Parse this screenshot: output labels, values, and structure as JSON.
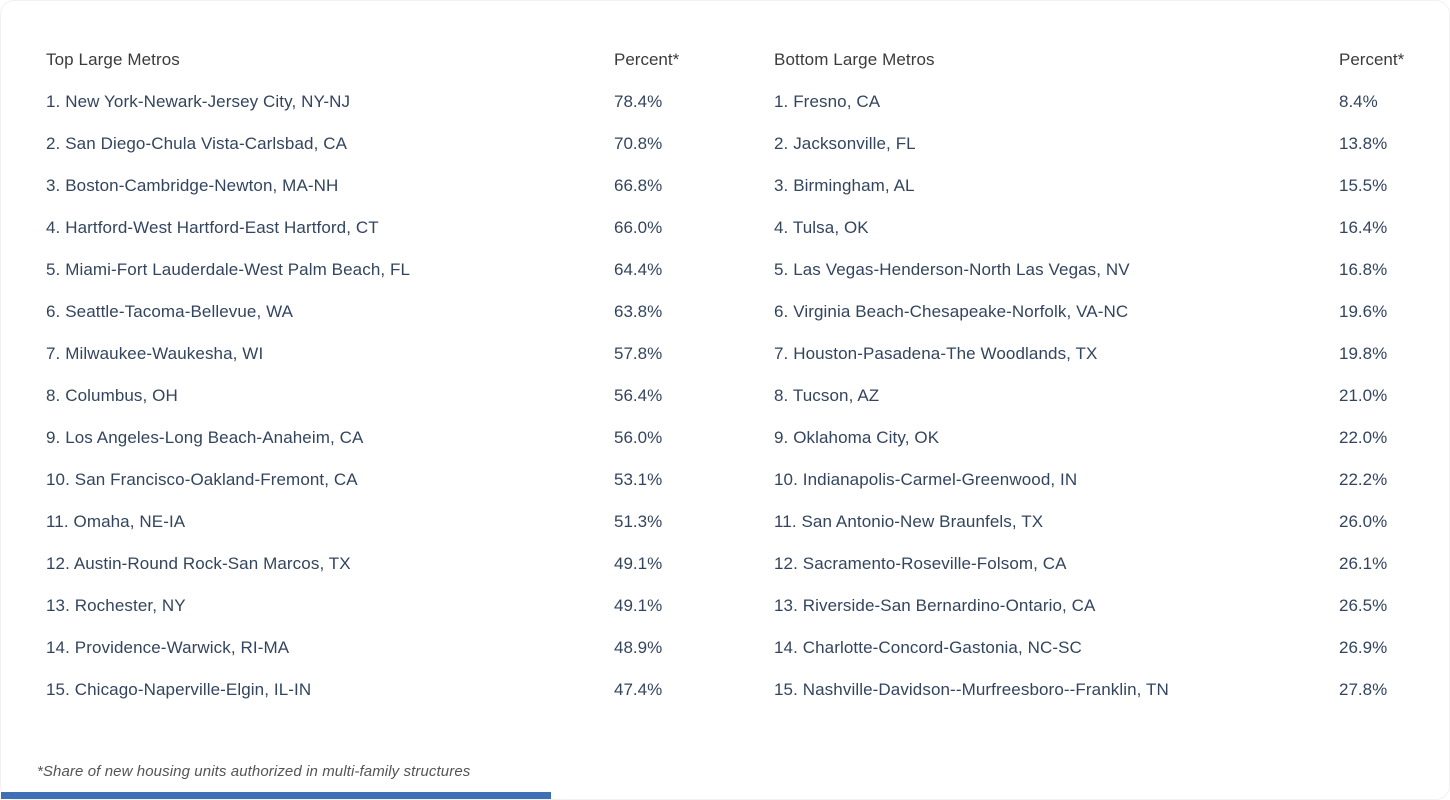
{
  "page": {
    "background": "#ffffff",
    "footnote": "*Share of new housing units authorized in multi-family structures",
    "bottom_bar_color": "#3f6fb5"
  },
  "colors": {
    "header_text": "#3b3b3b",
    "row_text": "#33455e",
    "footnote_text": "#555555"
  },
  "chart_data": {
    "type": "table",
    "footnote": "*Share of new housing units authorized in multi-family structures",
    "tables": [
      {
        "title": "Top Large Metros",
        "percent_header": "Percent*",
        "rows": [
          {
            "metro": "1. New York-Newark-Jersey City, NY-NJ",
            "percent": "78.4%"
          },
          {
            "metro": "2. San Diego-Chula Vista-Carlsbad, CA",
            "percent": "70.8%"
          },
          {
            "metro": "3. Boston-Cambridge-Newton, MA-NH",
            "percent": "66.8%"
          },
          {
            "metro": "4. Hartford-West Hartford-East Hartford, CT",
            "percent": "66.0%"
          },
          {
            "metro": "5. Miami-Fort Lauderdale-West Palm Beach, FL",
            "percent": "64.4%"
          },
          {
            "metro": "6. Seattle-Tacoma-Bellevue, WA",
            "percent": "63.8%"
          },
          {
            "metro": "7. Milwaukee-Waukesha, WI",
            "percent": "57.8%"
          },
          {
            "metro": "8. Columbus, OH",
            "percent": "56.4%"
          },
          {
            "metro": "9. Los Angeles-Long Beach-Anaheim, CA",
            "percent": "56.0%"
          },
          {
            "metro": "10. San Francisco-Oakland-Fremont, CA",
            "percent": "53.1%"
          },
          {
            "metro": "11. Omaha, NE-IA",
            "percent": "51.3%"
          },
          {
            "metro": "12. Austin-Round Rock-San Marcos, TX",
            "percent": "49.1%"
          },
          {
            "metro": "13. Rochester, NY",
            "percent": "49.1%"
          },
          {
            "metro": "14. Providence-Warwick, RI-MA",
            "percent": "48.9%"
          },
          {
            "metro": "15. Chicago-Naperville-Elgin, IL-IN",
            "percent": "47.4%"
          }
        ]
      },
      {
        "title": "Bottom Large Metros",
        "percent_header": "Percent*",
        "rows": [
          {
            "metro": "1. Fresno, CA",
            "percent": "8.4%"
          },
          {
            "metro": "2. Jacksonville, FL",
            "percent": "13.8%"
          },
          {
            "metro": "3. Birmingham, AL",
            "percent": "15.5%"
          },
          {
            "metro": "4. Tulsa, OK",
            "percent": "16.4%"
          },
          {
            "metro": "5. Las Vegas-Henderson-North Las Vegas, NV",
            "percent": "16.8%"
          },
          {
            "metro": "6. Virginia Beach-Chesapeake-Norfolk, VA-NC",
            "percent": "19.6%"
          },
          {
            "metro": "7. Houston-Pasadena-The Woodlands, TX",
            "percent": "19.8%"
          },
          {
            "metro": "8. Tucson, AZ",
            "percent": "21.0%"
          },
          {
            "metro": "9. Oklahoma City, OK",
            "percent": "22.0%"
          },
          {
            "metro": "10. Indianapolis-Carmel-Greenwood, IN",
            "percent": "22.2%"
          },
          {
            "metro": "11. San Antonio-New Braunfels, TX",
            "percent": "26.0%"
          },
          {
            "metro": "12. Sacramento-Roseville-Folsom, CA",
            "percent": "26.1%"
          },
          {
            "metro": "13. Riverside-San Bernardino-Ontario, CA",
            "percent": "26.5%"
          },
          {
            "metro": "14. Charlotte-Concord-Gastonia, NC-SC",
            "percent": "26.9%"
          },
          {
            "metro": "15. Nashville-Davidson--Murfreesboro--Franklin, TN",
            "percent": "27.8%"
          }
        ]
      }
    ]
  }
}
